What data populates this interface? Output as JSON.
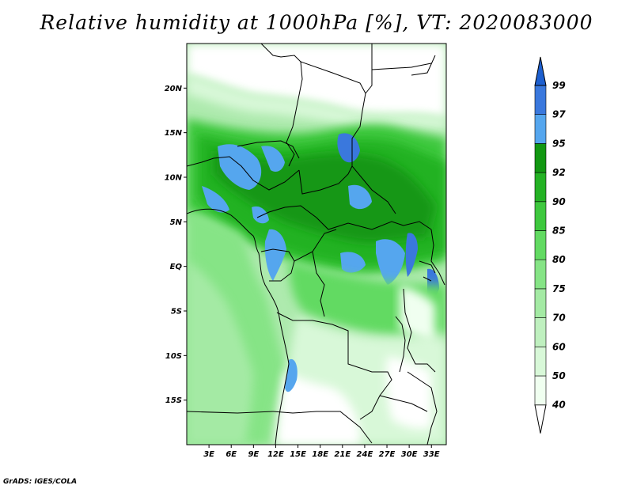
{
  "title": "Relative humidity at 1000hPa [%], VT: 2020083000",
  "credit": "GrADS: IGES/COLA",
  "map": {
    "lon_range": [
      0,
      35
    ],
    "lat_range": [
      -20,
      25
    ],
    "lat_ticks": [
      {
        "value": 20,
        "label": "20N"
      },
      {
        "value": 15,
        "label": "15N"
      },
      {
        "value": 10,
        "label": "10N"
      },
      {
        "value": 5,
        "label": "5N"
      },
      {
        "value": 0,
        "label": "EQ"
      },
      {
        "value": -5,
        "label": "5S"
      },
      {
        "value": -10,
        "label": "10S"
      },
      {
        "value": -15,
        "label": "15S"
      }
    ],
    "lon_ticks": [
      {
        "value": 3,
        "label": "3E"
      },
      {
        "value": 6,
        "label": "6E"
      },
      {
        "value": 9,
        "label": "9E"
      },
      {
        "value": 12,
        "label": "12E"
      },
      {
        "value": 15,
        "label": "15E"
      },
      {
        "value": 18,
        "label": "18E"
      },
      {
        "value": 21,
        "label": "21E"
      },
      {
        "value": 24,
        "label": "24E"
      },
      {
        "value": 27,
        "label": "27E"
      },
      {
        "value": 30,
        "label": "30E"
      },
      {
        "value": 33,
        "label": "33E"
      }
    ]
  },
  "colorbar": {
    "levels": [
      {
        "label": "40",
        "color": "#f0fff0"
      },
      {
        "label": "50",
        "color": "#d8f8d8"
      },
      {
        "label": "60",
        "color": "#bff0bf"
      },
      {
        "label": "70",
        "color": "#a4eaa4"
      },
      {
        "label": "75",
        "color": "#86e486"
      },
      {
        "label": "80",
        "color": "#62da62"
      },
      {
        "label": "85",
        "color": "#3ec83e"
      },
      {
        "label": "90",
        "color": "#24b224"
      },
      {
        "label": "92",
        "color": "#129712"
      },
      {
        "label": "95",
        "color": "#55a6ee"
      },
      {
        "label": "97",
        "color": "#3a78dd"
      },
      {
        "label": "99",
        "color": ""
      }
    ],
    "below_color": "#ffffff",
    "above_color": "#1d5fcf"
  }
}
